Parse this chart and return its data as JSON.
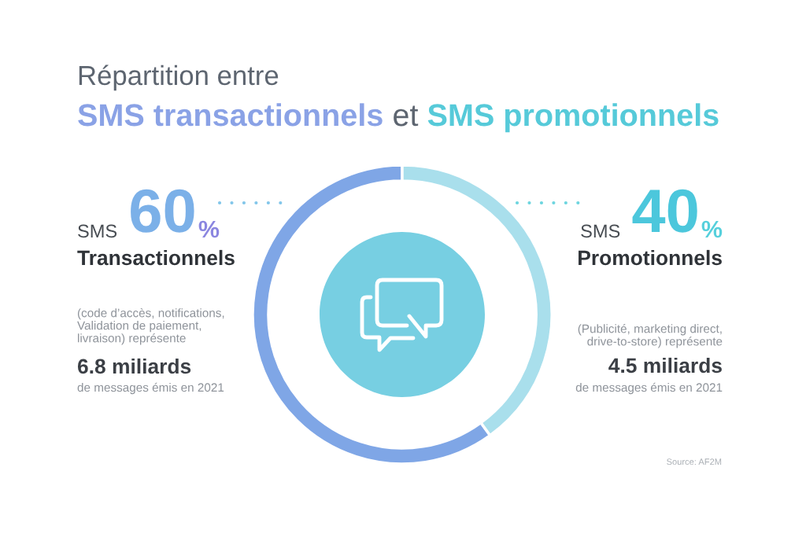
{
  "chart_data": {
    "type": "donut",
    "title": "Répartition entre",
    "subtitle": "SMS transactionnels et SMS promotionnels",
    "categories": [
      "Transactionnels",
      "Promotionnels"
    ],
    "values": [
      60,
      40
    ],
    "colors": [
      "#7fa6e6",
      "#a9dfec"
    ],
    "value_labels": [
      "60%",
      "40%"
    ],
    "annotations": [
      "SMS",
      "(code d’accès, notifications,\nValidation de paiement,\nlivraison) représente",
      "6.8 miliards",
      "de messages émis en 2021",
      "SMS",
      "(Publicité, marketing direct,\ndrive-to-store) représente",
      "4.5 miliards",
      "de messages émis en 2021",
      "Source: AF2M"
    ]
  }
}
